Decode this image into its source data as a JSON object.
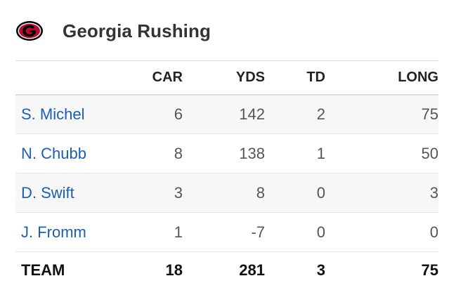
{
  "header": {
    "logo_icon": "georgia-g-logo-icon",
    "title": "Georgia Rushing"
  },
  "table": {
    "columns": [
      "",
      "CAR",
      "YDS",
      "TD",
      "LONG"
    ],
    "rows": [
      {
        "name": "S. Michel",
        "car": "6",
        "yds": "142",
        "td": "2",
        "long": "75"
      },
      {
        "name": "N. Chubb",
        "car": "8",
        "yds": "138",
        "td": "1",
        "long": "50"
      },
      {
        "name": "D. Swift",
        "car": "3",
        "yds": "8",
        "td": "0",
        "long": "3"
      },
      {
        "name": "J. Fromm",
        "car": "1",
        "yds": "-7",
        "td": "0",
        "long": "0"
      }
    ],
    "team": {
      "name": "TEAM",
      "car": "18",
      "yds": "281",
      "td": "3",
      "long": "75"
    }
  },
  "colors": {
    "link": "#1a5fb4",
    "logo_red": "#ba0c2f",
    "logo_black": "#000000"
  }
}
